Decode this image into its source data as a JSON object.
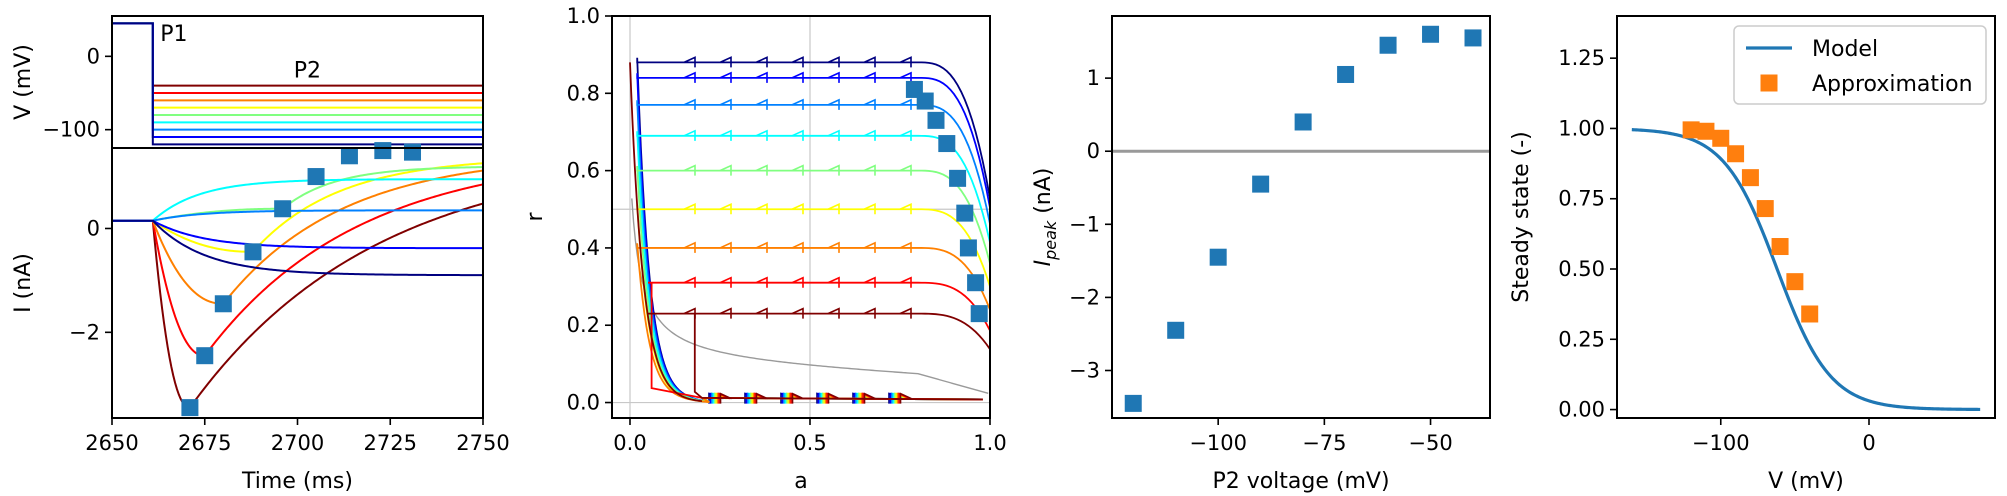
{
  "chart_data": [
    {
      "id": "p1",
      "type": "line",
      "subplots": [
        {
          "ylabel": "V (mV)",
          "xlim": [
            2650,
            2750
          ],
          "ylim": [
            -125,
            55
          ],
          "yticks": [
            0,
            -100
          ],
          "ytick_labels": [
            "0",
            "−100"
          ],
          "annotations": [
            {
              "text": "P1",
              "x": 2663,
              "y": 32
            },
            {
              "text": "P2",
              "x": 2699,
              "y": -18
            }
          ],
          "step_time": 2661,
          "holding_v": 45,
          "p2_voltages": [
            -40,
            -50,
            -60,
            -70,
            -80,
            -90,
            -100,
            -110,
            -120
          ]
        },
        {
          "xlabel": "Time (ms)",
          "ylabel": "I (nA)",
          "xlim": [
            2650,
            2750
          ],
          "ylim": [
            -3.65,
            1.55
          ],
          "xticks": [
            2650,
            2675,
            2700,
            2725,
            2750
          ],
          "xtick_labels": [
            "2650",
            "2675",
            "2700",
            "2725",
            "2750"
          ],
          "yticks": [
            0,
            -2
          ],
          "ytick_labels": [
            "0",
            "−2"
          ],
          "baseline_current": 0.15,
          "markers": {
            "x": [
              2671,
              2675,
              2680,
              2688,
              2696,
              2705,
              2714,
              2723,
              2731
            ],
            "y": [
              -3.45,
              -2.45,
              -1.45,
              -0.45,
              0.38,
              1.0,
              1.4,
              1.5,
              1.47
            ]
          }
        }
      ]
    },
    {
      "id": "p2",
      "type": "line",
      "xlabel": "a",
      "ylabel": "r",
      "xlim": [
        -0.05,
        1.0
      ],
      "ylim": [
        -0.04,
        1.0
      ],
      "xticks": [
        0.0,
        0.5,
        1.0
      ],
      "xtick_labels": [
        "0.0",
        "0.5",
        "1.0"
      ],
      "yticks": [
        0.0,
        0.2,
        0.4,
        0.6,
        0.8,
        1.0
      ],
      "ytick_labels": [
        "0.0",
        "0.2",
        "0.4",
        "0.6",
        "0.8",
        "1.0"
      ],
      "gridlines_x": [
        0.0,
        0.5
      ],
      "gridlines_y": [
        0.0,
        0.5
      ],
      "trajectory_levels": [
        0.88,
        0.84,
        0.77,
        0.69,
        0.6,
        0.5,
        0.4,
        0.31,
        0.23
      ],
      "markers": {
        "x": [
          0.79,
          0.82,
          0.85,
          0.88,
          0.91,
          0.93,
          0.94,
          0.96,
          0.97
        ],
        "y": [
          0.81,
          0.78,
          0.73,
          0.67,
          0.58,
          0.49,
          0.4,
          0.31,
          0.23
        ]
      }
    },
    {
      "id": "p3",
      "type": "scatter",
      "xlabel": "P2 voltage (mV)",
      "ylabel": "I_peak (nA)",
      "xlim": [
        -125,
        -36
      ],
      "ylim": [
        -3.65,
        1.85
      ],
      "xticks": [
        -100,
        -75,
        -50
      ],
      "xtick_labels": [
        "−100",
        "−75",
        "−50"
      ],
      "yticks": [
        1,
        0,
        -1,
        -2,
        -3
      ],
      "ytick_labels": [
        "1",
        "0",
        "−1",
        "−2",
        "−3"
      ],
      "hline": 0,
      "points": {
        "x": [
          -120,
          -110,
          -100,
          -90,
          -80,
          -70,
          -60,
          -50,
          -40
        ],
        "y": [
          -3.45,
          -2.45,
          -1.45,
          -0.45,
          0.4,
          1.05,
          1.45,
          1.6,
          1.55
        ]
      }
    },
    {
      "id": "p4",
      "type": "line",
      "xlabel": "V (mV)",
      "ylabel": "Steady state (-)",
      "xlim": [
        -170,
        85
      ],
      "ylim": [
        -0.03,
        1.4
      ],
      "xticks": [
        -100,
        0
      ],
      "xtick_labels": [
        "−100",
        "0"
      ],
      "yticks": [
        0.0,
        0.25,
        0.5,
        0.75,
        1.0,
        1.25
      ],
      "ytick_labels": [
        "0.00",
        "0.25",
        "0.50",
        "0.75",
        "1.00",
        "1.25"
      ],
      "series": [
        {
          "name": "Model",
          "color": "#1f77b4",
          "kind": "line",
          "v_half": -62,
          "slope": 18,
          "vmin": -160,
          "vmax": 75
        },
        {
          "name": "Approximation",
          "color": "#ff7f0e",
          "kind": "square",
          "x": [
            -120,
            -110,
            -100,
            -90,
            -80,
            -70,
            -60,
            -50,
            -40
          ],
          "y": [
            0.995,
            0.99,
            0.965,
            0.91,
            0.825,
            0.715,
            0.58,
            0.455,
            0.34
          ]
        }
      ],
      "legend": {
        "placement": "top-right"
      }
    }
  ],
  "colors": {
    "marker_blue": "#1f77b4",
    "marker_orange": "#ff7f0e",
    "grid": "#c8c8c8",
    "zero_line": "#999999"
  }
}
